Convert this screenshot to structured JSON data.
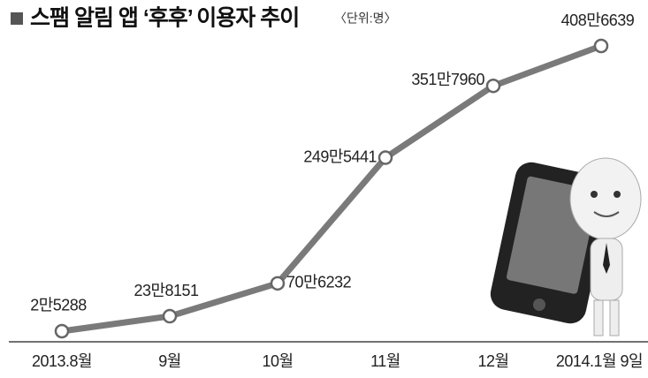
{
  "chart_data": {
    "type": "line",
    "title": "스팸 알림 앱 ‘후후’ 이용자 추이",
    "subtitle": "〈단위:명〉",
    "categories": [
      "2013.8월",
      "9월",
      "10월",
      "11월",
      "12월",
      "2014.1월 9일"
    ],
    "values": [
      25288,
      238151,
      706232,
      2495441,
      3517960,
      4086639
    ],
    "value_labels": [
      "2만5288",
      "23만8151",
      "70만6232",
      "249만5441",
      "351만7960",
      "408만6639"
    ],
    "color": "#7a7a7a"
  }
}
